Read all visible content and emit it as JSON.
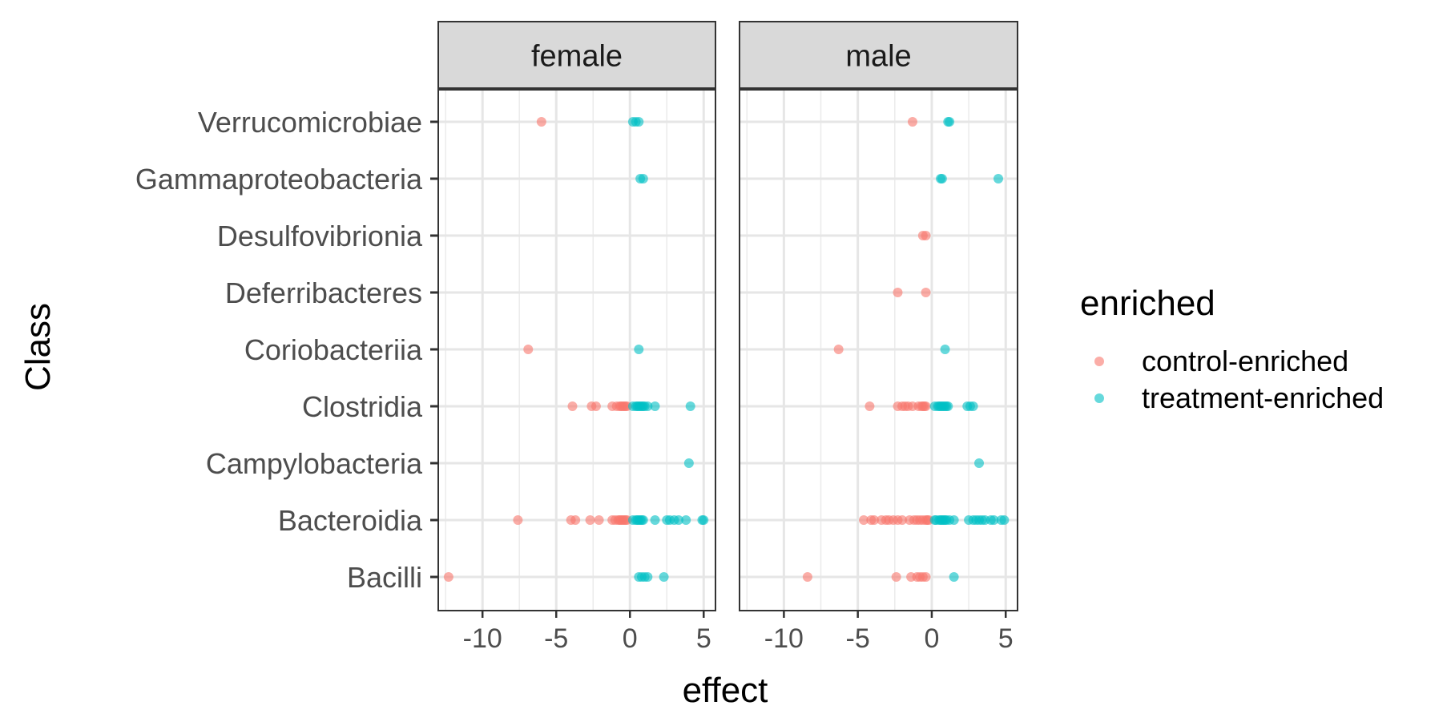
{
  "chart_data": {
    "type": "scatter",
    "xlabel": "effect",
    "ylabel": "Class",
    "xlim": [
      -13,
      5.8
    ],
    "x_ticks": [
      "-10",
      "-5",
      "0",
      "5"
    ],
    "x_tick_values": [
      -10,
      -5,
      0,
      5
    ],
    "categories": [
      "Verrucomicrobiae",
      "Gammaproteobacteria",
      "Desulfovibrionia",
      "Deferribacteres",
      "Coriobacteriia",
      "Clostridia",
      "Campylobacteria",
      "Bacteroidia",
      "Bacilli"
    ],
    "grid": true,
    "legend": {
      "title": "enriched",
      "placement": "right",
      "entries": [
        {
          "name": "control-enriched",
          "color": "#F8766D"
        },
        {
          "name": "treatment-enriched",
          "color": "#00BFC4"
        }
      ]
    },
    "facets": [
      {
        "label": "female",
        "series": [
          {
            "name": "control-enriched",
            "points": [
              {
                "class": "Verrucomicrobiae",
                "x": [
                  -6.0
                ]
              },
              {
                "class": "Coriobacteriia",
                "x": [
                  -6.9
                ]
              },
              {
                "class": "Clostridia",
                "x": [
                  -3.9,
                  -2.6,
                  -2.3,
                  -1.2,
                  -0.9,
                  -0.7,
                  -0.6,
                  -0.5,
                  -0.4,
                  -0.3,
                  -0.2
                ]
              },
              {
                "class": "Bacteroidia",
                "x": [
                  -7.6,
                  -4.0,
                  -3.7,
                  -2.7,
                  -2.1,
                  -1.2,
                  -1.0,
                  -0.8,
                  -0.7,
                  -0.6,
                  -0.5,
                  -0.4,
                  -0.3,
                  -0.2
                ]
              },
              {
                "class": "Bacilli",
                "x": [
                  -12.3
                ]
              }
            ]
          },
          {
            "name": "treatment-enriched",
            "points": [
              {
                "class": "Verrucomicrobiae",
                "x": [
                  0.2,
                  0.4,
                  0.6
                ]
              },
              {
                "class": "Gammaproteobacteria",
                "x": [
                  0.7,
                  0.9
                ]
              },
              {
                "class": "Coriobacteriia",
                "x": [
                  0.6
                ]
              },
              {
                "class": "Clostridia",
                "x": [
                  0.2,
                  0.4,
                  0.5,
                  0.6,
                  0.7,
                  0.8,
                  0.9,
                  1.0,
                  1.2,
                  1.7,
                  4.1
                ]
              },
              {
                "class": "Campylobacteria",
                "x": [
                  4.0
                ]
              },
              {
                "class": "Bacteroidia",
                "x": [
                  0.2,
                  0.4,
                  0.5,
                  0.6,
                  0.7,
                  0.8,
                  0.9,
                  1.7,
                  2.5,
                  2.7,
                  3.0,
                  3.3,
                  3.8,
                  4.9,
                  5.0
                ]
              },
              {
                "class": "Bacilli",
                "x": [
                  0.6,
                  0.8,
                  1.0,
                  1.2,
                  2.3
                ]
              }
            ]
          }
        ]
      },
      {
        "label": "male",
        "series": [
          {
            "name": "control-enriched",
            "points": [
              {
                "class": "Verrucomicrobiae",
                "x": [
                  -1.3
                ]
              },
              {
                "class": "Desulfovibrionia",
                "x": [
                  -0.6,
                  -0.4
                ]
              },
              {
                "class": "Deferribacteres",
                "x": [
                  -2.3,
                  -0.4
                ]
              },
              {
                "class": "Coriobacteriia",
                "x": [
                  -6.3
                ]
              },
              {
                "class": "Clostridia",
                "x": [
                  -4.2,
                  -2.3,
                  -2.0,
                  -1.8,
                  -1.6,
                  -1.3,
                  -0.9,
                  -0.7,
                  -0.6,
                  -0.5,
                  -0.4
                ]
              },
              {
                "class": "Bacteroidia",
                "x": [
                  -4.6,
                  -4.1,
                  -3.9,
                  -3.4,
                  -3.1,
                  -2.9,
                  -2.6,
                  -2.3,
                  -2.0,
                  -1.5,
                  -1.2,
                  -1.0,
                  -0.8,
                  -0.6,
                  -0.4,
                  -0.3,
                  -0.2
                ]
              },
              {
                "class": "Bacilli",
                "x": [
                  -8.4,
                  -2.4,
                  -1.4,
                  -1.0,
                  -0.8,
                  -0.6,
                  -0.4
                ]
              }
            ]
          },
          {
            "name": "treatment-enriched",
            "points": [
              {
                "class": "Verrucomicrobiae",
                "x": [
                  1.1,
                  1.2
                ]
              },
              {
                "class": "Gammaproteobacteria",
                "x": [
                  0.6,
                  0.7,
                  4.5
                ]
              },
              {
                "class": "Coriobacteriia",
                "x": [
                  0.9
                ]
              },
              {
                "class": "Clostridia",
                "x": [
                  0.2,
                  0.4,
                  0.5,
                  0.6,
                  0.7,
                  0.8,
                  0.9,
                  1.0,
                  1.1,
                  2.4,
                  2.6,
                  2.8
                ]
              },
              {
                "class": "Campylobacteria",
                "x": [
                  3.2
                ]
              },
              {
                "class": "Bacteroidia",
                "x": [
                  0.2,
                  0.3,
                  0.5,
                  0.6,
                  0.7,
                  0.8,
                  0.9,
                  1.0,
                  1.2,
                  1.5,
                  2.5,
                  2.8,
                  3.0,
                  3.2,
                  3.4,
                  3.6,
                  4.0,
                  4.2,
                  4.7,
                  4.9
                ]
              },
              {
                "class": "Bacilli",
                "x": [
                  1.5
                ]
              }
            ]
          }
        ]
      }
    ]
  }
}
